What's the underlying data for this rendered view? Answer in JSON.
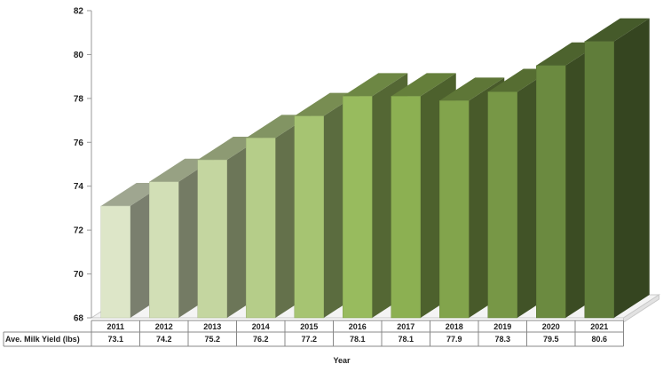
{
  "chart_data": {
    "type": "bar",
    "style": "3d-column",
    "categories": [
      "2011",
      "2012",
      "2013",
      "2014",
      "2015",
      "2016",
      "2017",
      "2018",
      "2019",
      "2020",
      "2021"
    ],
    "series": [
      {
        "name": "Ave. Milk Yield (lbs)",
        "values": [
          73.1,
          74.2,
          75.2,
          76.2,
          77.2,
          78.1,
          78.1,
          77.9,
          78.3,
          79.5,
          80.6
        ]
      }
    ],
    "y_ticks": [
      "68",
      "70",
      "72",
      "74",
      "76",
      "78",
      "80",
      "82"
    ],
    "ylim": [
      68,
      82
    ],
    "xlabel": "Year",
    "ylabel": "",
    "title": "",
    "grid": false,
    "legend": "data-table-below",
    "colors": [
      "#dde6c8",
      "#d2dfb6",
      "#c4d6a0",
      "#b5cd89",
      "#a6c472",
      "#98bb5e",
      "#8cb052",
      "#82a44c",
      "#779746",
      "#6b8a40",
      "#607d3a"
    ]
  }
}
